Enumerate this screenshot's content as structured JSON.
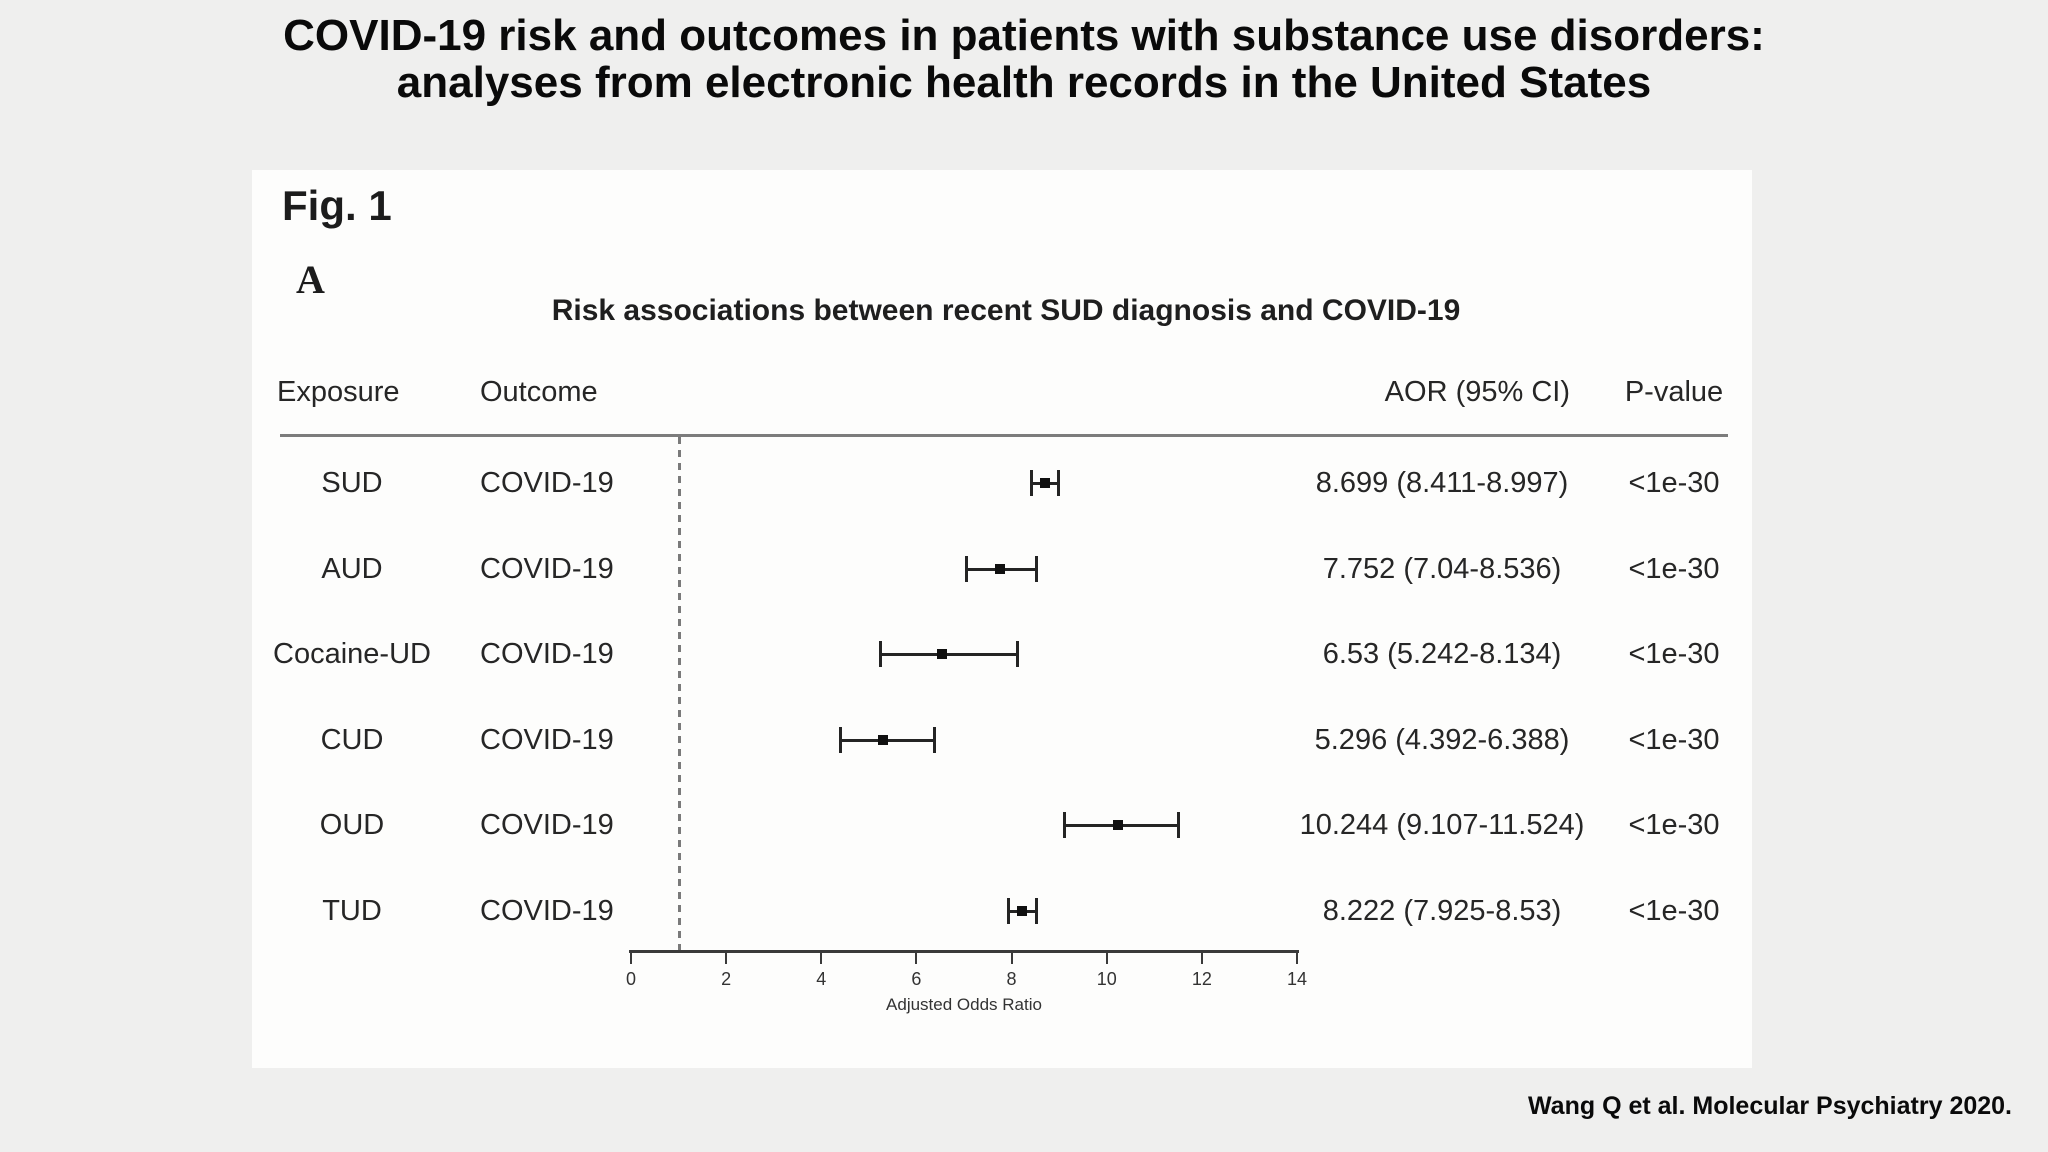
{
  "page": {
    "title_line1": "COVID-19 risk and outcomes in patients with substance use disorders:",
    "title_line2": "analyses from electronic health records in the United States",
    "citation": "Wang Q et al. Molecular Psychiatry 2020."
  },
  "figure": {
    "fig_label": "Fig. 1",
    "panel_label": "A",
    "subtitle": "Risk associations between recent SUD diagnosis and COVID-19",
    "columns": {
      "exposure": "Exposure",
      "outcome": "Outcome",
      "aor": "AOR (95% CI)",
      "pvalue": "P-value"
    }
  },
  "chart_data": {
    "type": "scatter",
    "subtype": "forest-plot",
    "title": "Risk associations between recent SUD diagnosis and COVID-19",
    "xlabel": "Adjusted Odds Ratio",
    "xlim": [
      0,
      14
    ],
    "xticks": [
      0,
      2,
      4,
      6,
      8,
      10,
      12,
      14
    ],
    "reference_line": 1,
    "rows": [
      {
        "exposure": "SUD",
        "outcome": "COVID-19",
        "aor": 8.699,
        "ci_low": 8.411,
        "ci_high": 8.997,
        "aor_label": "8.699 (8.411-8.997)",
        "p_value": "<1e-30"
      },
      {
        "exposure": "AUD",
        "outcome": "COVID-19",
        "aor": 7.752,
        "ci_low": 7.04,
        "ci_high": 8.536,
        "aor_label": "7.752 (7.04-8.536)",
        "p_value": "<1e-30"
      },
      {
        "exposure": "Cocaine-UD",
        "outcome": "COVID-19",
        "aor": 6.53,
        "ci_low": 5.242,
        "ci_high": 8.134,
        "aor_label": "6.53 (5.242-8.134)",
        "p_value": "<1e-30"
      },
      {
        "exposure": "CUD",
        "outcome": "COVID-19",
        "aor": 5.296,
        "ci_low": 4.392,
        "ci_high": 6.388,
        "aor_label": "5.296 (4.392-6.388)",
        "p_value": "<1e-30"
      },
      {
        "exposure": "OUD",
        "outcome": "COVID-19",
        "aor": 10.244,
        "ci_low": 9.107,
        "ci_high": 11.524,
        "aor_label": "10.244 (9.107-11.524)",
        "p_value": "<1e-30"
      },
      {
        "exposure": "TUD",
        "outcome": "COVID-19",
        "aor": 8.222,
        "ci_low": 7.925,
        "ci_high": 8.53,
        "aor_label": "8.222 (7.925-8.53)",
        "p_value": "<1e-30"
      }
    ]
  },
  "colors": {
    "background": "#efefee",
    "panel": "#fdfdfc",
    "text": "#262626",
    "line": "#242424",
    "separator": "#7c7c7c",
    "reference_line": "#7a7a7a"
  }
}
